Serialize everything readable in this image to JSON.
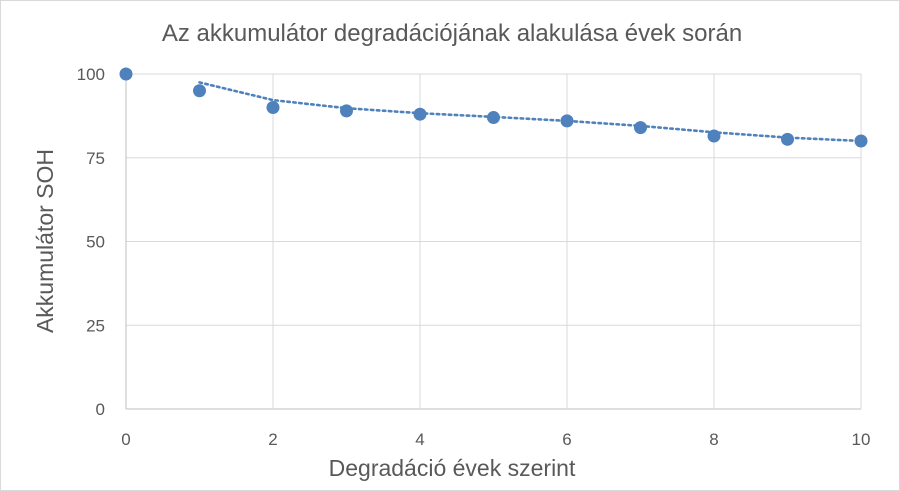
{
  "chart_data": {
    "type": "scatter",
    "title": "Az akkumulátor degradációjának alakulása évek során",
    "xlabel": "Degradáció évek szerint",
    "ylabel": "Akkumulátor SOH",
    "xlim": [
      0,
      10
    ],
    "ylim": [
      0,
      100
    ],
    "x_ticks": [
      "0",
      "2",
      "4",
      "6",
      "8",
      "10"
    ],
    "y_ticks": [
      "0",
      "25",
      "50",
      "75",
      "100"
    ],
    "grid": "vertical and horizontal",
    "series": [
      {
        "x": [
          0,
          1,
          2,
          3,
          4,
          5,
          6,
          7,
          8,
          9,
          10
        ],
        "y": [
          100,
          95,
          90,
          89,
          88,
          87,
          86,
          84,
          81.5,
          80.5,
          80
        ],
        "color": "#4f81bd"
      }
    ],
    "trendline": {
      "style": "dotted",
      "color": "#4f81bd",
      "x": [
        1,
        2,
        3,
        4,
        5,
        6,
        7,
        8,
        9,
        10
      ],
      "y": [
        97.5,
        92.2,
        89.8,
        88.3,
        87.2,
        86.0,
        84.5,
        82.6,
        81.0,
        80.0
      ]
    }
  }
}
